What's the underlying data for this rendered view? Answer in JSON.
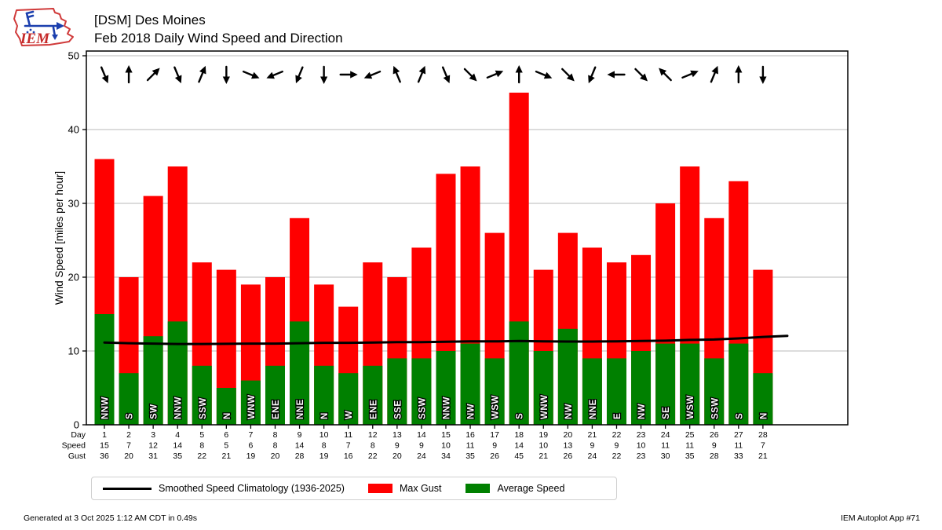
{
  "header": {
    "title_line1": "[DSM] Des Moines",
    "title_line2": "Feb 2018 Daily Wind Speed and Direction",
    "logo_text": "IEM"
  },
  "legend": {
    "items": [
      {
        "label": "Smoothed Speed Climatology (1936-2025)",
        "type": "line",
        "color": "#000000"
      },
      {
        "label": "Max Gust",
        "type": "swatch",
        "color": "#ff0000"
      },
      {
        "label": "Average Speed",
        "type": "swatch",
        "color": "#008000"
      }
    ]
  },
  "footer": {
    "generated": "Generated at 3 Oct 2025 1:12 AM CDT in 0.49s",
    "app": "IEM Autoplot App #71"
  },
  "chart_data": {
    "type": "bar",
    "title": "[DSM] Des Moines - Feb 2018 Daily Wind Speed and Direction",
    "xlabel": "",
    "ylabel": "Wind Speed [miles per hour]",
    "ylim": [
      0,
      50.6
    ],
    "yticks": [
      0,
      10,
      20,
      30,
      40,
      50
    ],
    "grid": true,
    "legend_position": "bottom",
    "row_labels": [
      "Day",
      "Speed",
      "Gust"
    ],
    "categories": [
      1,
      2,
      3,
      4,
      5,
      6,
      7,
      8,
      9,
      10,
      11,
      12,
      13,
      14,
      15,
      16,
      17,
      18,
      19,
      20,
      21,
      22,
      23,
      24,
      25,
      26,
      27,
      28
    ],
    "series": [
      {
        "name": "Max Gust",
        "color": "#ff0000",
        "values": [
          36,
          20,
          31,
          35,
          22,
          21,
          19,
          20,
          28,
          19,
          16,
          22,
          20,
          24,
          34,
          35,
          26,
          45,
          21,
          26,
          24,
          22,
          23,
          30,
          35,
          28,
          33,
          21
        ]
      },
      {
        "name": "Average Speed",
        "color": "#008000",
        "values": [
          15,
          7,
          12,
          14,
          8,
          5,
          6,
          8,
          14,
          8,
          7,
          8,
          9,
          9,
          10,
          11,
          9,
          14,
          10,
          13,
          9,
          9,
          10,
          11,
          11,
          9,
          11,
          7
        ]
      }
    ],
    "wind_directions": [
      "NNW",
      "S",
      "SW",
      "NNW",
      "SSW",
      "N",
      "WNW",
      "ENE",
      "NNE",
      "N",
      "W",
      "ENE",
      "SSE",
      "SSW",
      "NNW",
      "NW",
      "WSW",
      "S",
      "WNW",
      "NW",
      "NNE",
      "E",
      "NW",
      "SE",
      "WSW",
      "SSW",
      "S",
      "N"
    ],
    "climatology_line": {
      "name": "Smoothed Speed Climatology (1936-2025)",
      "color": "#000000",
      "points": [
        [
          1,
          11.15
        ],
        [
          2,
          11.05
        ],
        [
          3,
          11.0
        ],
        [
          4,
          10.95
        ],
        [
          5,
          10.95
        ],
        [
          6,
          10.97
        ],
        [
          7,
          11.0
        ],
        [
          8,
          11.0
        ],
        [
          9,
          11.05
        ],
        [
          10,
          11.1
        ],
        [
          11,
          11.1
        ],
        [
          12,
          11.15
        ],
        [
          13,
          11.2
        ],
        [
          14,
          11.2
        ],
        [
          15,
          11.25
        ],
        [
          16,
          11.3
        ],
        [
          17,
          11.3
        ],
        [
          18,
          11.35
        ],
        [
          19,
          11.3
        ],
        [
          20,
          11.28
        ],
        [
          21,
          11.28
        ],
        [
          22,
          11.3
        ],
        [
          23,
          11.35
        ],
        [
          24,
          11.4
        ],
        [
          25,
          11.5
        ],
        [
          26,
          11.55
        ],
        [
          27,
          11.7
        ],
        [
          28,
          11.9
        ],
        [
          29,
          12.05
        ]
      ]
    }
  }
}
